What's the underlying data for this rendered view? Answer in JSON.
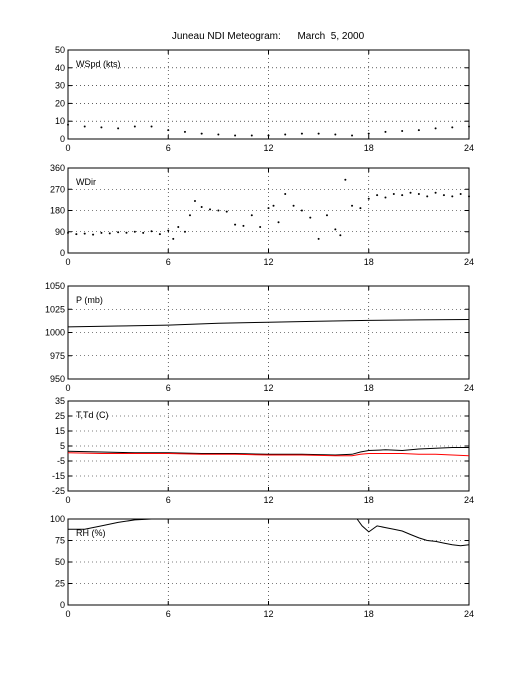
{
  "title": "Juneau NDI Meteogram:      March  5, 2000",
  "chart_data": [
    {
      "type": "scatter",
      "label": "WSpd (kts)",
      "ylim": [
        0,
        50
      ],
      "yticks": [
        "0",
        "10",
        "20",
        "30",
        "40",
        "50"
      ],
      "xlim": [
        0,
        24
      ],
      "xticks": [
        "0",
        "6",
        "12",
        "18",
        "24"
      ],
      "grid": true,
      "series": [
        {
          "color": "#000000",
          "x": [
            0,
            1,
            2,
            3,
            4,
            5,
            6,
            7,
            8,
            9,
            10,
            11,
            12,
            13,
            14,
            15,
            16,
            17,
            18,
            19,
            20,
            21,
            22,
            23,
            24
          ],
          "y": [
            8,
            7,
            6.5,
            6,
            7,
            7,
            5,
            4,
            3,
            2.5,
            2,
            2,
            2,
            2.5,
            3,
            3,
            2.5,
            2,
            3,
            4,
            4.5,
            5,
            6,
            6.5,
            7
          ]
        }
      ]
    },
    {
      "type": "scatter",
      "label": "WDir",
      "ylim": [
        0,
        360
      ],
      "yticks": [
        "0",
        "90",
        "180",
        "270",
        "360"
      ],
      "xlim": [
        0,
        24
      ],
      "xticks": [
        "0",
        "6",
        "12",
        "18",
        "24"
      ],
      "grid": true,
      "series": [
        {
          "color": "#000000",
          "x": [
            0,
            0.5,
            1,
            1.5,
            2,
            2.5,
            3,
            3.5,
            4,
            4.5,
            5,
            5.5,
            6,
            6.3,
            6.6,
            7,
            7.3,
            7.6,
            8,
            8.5,
            9,
            9.5,
            10,
            10.5,
            11,
            11.5,
            12,
            12.3,
            12.6,
            13,
            13.5,
            14,
            14.5,
            15,
            15.5,
            16,
            16.3,
            16.6,
            17,
            17.5,
            18,
            18.5,
            19,
            19.5,
            20,
            20.5,
            21,
            21.5,
            22,
            22.5,
            23,
            23.5,
            24
          ],
          "y": [
            85,
            80,
            82,
            78,
            85,
            83,
            88,
            86,
            90,
            85,
            92,
            80,
            95,
            60,
            110,
            90,
            160,
            220,
            195,
            185,
            180,
            175,
            120,
            115,
            160,
            110,
            190,
            200,
            130,
            250,
            200,
            180,
            150,
            60,
            160,
            100,
            75,
            310,
            200,
            190,
            230,
            245,
            235,
            250,
            245,
            255,
            250,
            240,
            255,
            245,
            240,
            250,
            240
          ]
        }
      ]
    },
    {
      "type": "line",
      "label": "P (mb)",
      "ylim": [
        950,
        1050
      ],
      "yticks": [
        "950",
        "975",
        "1000",
        "1025",
        "1050"
      ],
      "xlim": [
        0,
        24
      ],
      "xticks": [
        "0",
        "6",
        "12",
        "18",
        "24"
      ],
      "grid": true,
      "series": [
        {
          "color": "#000000",
          "x": [
            0,
            3,
            6,
            9,
            12,
            15,
            18,
            21,
            24
          ],
          "y": [
            1006,
            1007,
            1008,
            1010,
            1011,
            1012,
            1013,
            1013.5,
            1014
          ]
        }
      ]
    },
    {
      "type": "line",
      "label": "T,Td (C)",
      "ylim": [
        -25,
        35
      ],
      "yticks": [
        "-25",
        "-15",
        "-5",
        "5",
        "15",
        "25",
        "35"
      ],
      "xlim": [
        0,
        24
      ],
      "xticks": [
        "0",
        "6",
        "12",
        "18",
        "24"
      ],
      "grid": true,
      "series": [
        {
          "color": "#000000",
          "x": [
            0,
            2,
            4,
            6,
            8,
            10,
            12,
            14,
            16,
            17,
            17.5,
            18,
            19,
            20,
            21,
            22,
            23,
            24
          ],
          "y": [
            1.5,
            1,
            0.5,
            0.5,
            0,
            0,
            -0.5,
            -0.5,
            -1,
            -0.5,
            1,
            2,
            2.5,
            2,
            3,
            3.5,
            4,
            4
          ]
        },
        {
          "color": "#ff0000",
          "x": [
            0,
            2,
            4,
            6,
            8,
            10,
            12,
            14,
            16,
            17,
            17.5,
            18,
            19,
            20,
            21,
            22,
            23,
            24
          ],
          "y": [
            0.5,
            0,
            0,
            0,
            -0.5,
            -0.5,
            -1,
            -1,
            -1.5,
            -1.5,
            -0.5,
            0,
            0,
            0,
            -0.5,
            -0.5,
            -1,
            -1.5
          ]
        }
      ]
    },
    {
      "type": "line",
      "label": "RH (%)",
      "ylim": [
        0,
        100
      ],
      "yticks": [
        "0",
        "25",
        "50",
        "75",
        "100"
      ],
      "xlim": [
        0,
        24
      ],
      "xticks": [
        "0",
        "6",
        "12",
        "18",
        "24"
      ],
      "grid": true,
      "series": [
        {
          "color": "#000000",
          "x": [
            0,
            1,
            2,
            3,
            4,
            5,
            6,
            6.6
          ],
          "y": [
            88,
            88,
            92,
            96,
            99,
            100,
            100,
            100
          ]
        },
        {
          "color": "#000000",
          "x": [
            17.3,
            17.6,
            18,
            18.5,
            19,
            19.5,
            20,
            20.5,
            21,
            21.5,
            22,
            22.5,
            23,
            23.5,
            24
          ],
          "y": [
            100,
            92,
            85,
            92,
            90,
            88,
            86,
            82,
            78,
            75,
            74,
            72,
            70,
            69,
            70
          ]
        }
      ]
    }
  ]
}
